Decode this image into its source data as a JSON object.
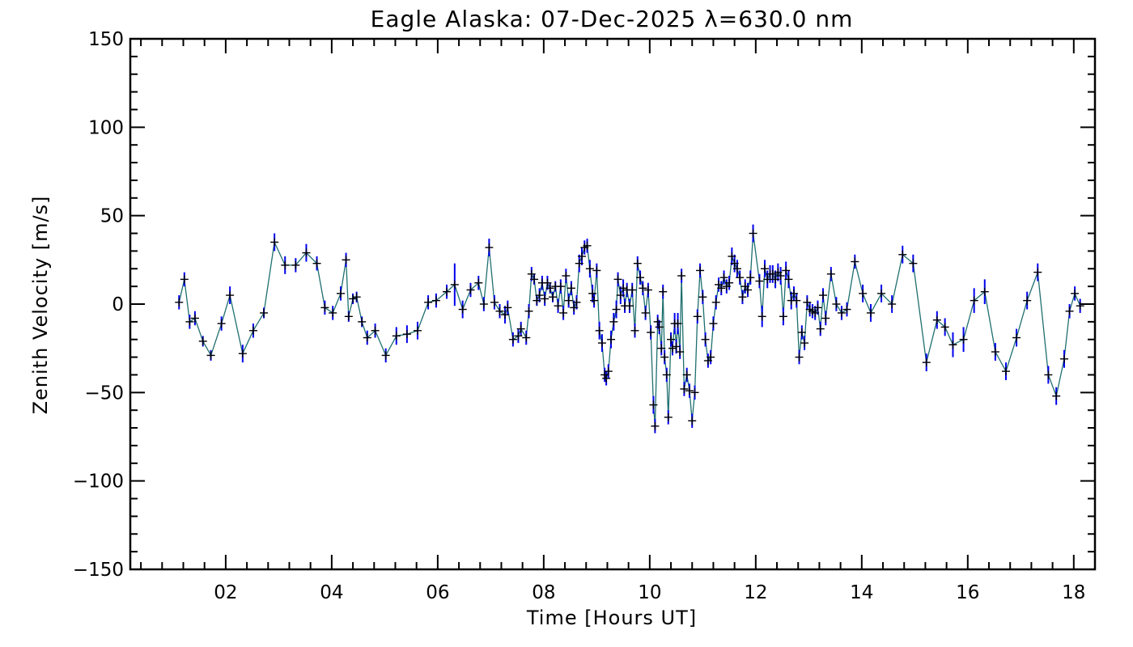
{
  "chart_data": {
    "type": "line",
    "title": "Eagle Alaska: 07-Dec-2025 λ=630.0 nm",
    "xlabel": "Time [Hours UT]",
    "ylabel": "Zenith Velocity [m/s]",
    "xlim": [
      0.2,
      18.4
    ],
    "ylim": [
      -150,
      150
    ],
    "xticks": [
      2,
      4,
      6,
      8,
      10,
      12,
      14,
      16,
      18
    ],
    "xtick_labels": [
      "02",
      "04",
      "06",
      "08",
      "10",
      "12",
      "14",
      "16",
      "18"
    ],
    "yticks": [
      -150,
      -100,
      -50,
      0,
      50,
      100,
      150
    ],
    "ytick_labels": [
      "−150",
      "−100",
      "−50",
      "0",
      "50",
      "100",
      "150"
    ],
    "x_minor_per_major": 5,
    "y_minor_per_major": 5,
    "grid": false,
    "legend": "none",
    "colors": {
      "line": "#1f6f6f",
      "error_bar": "#0000ee",
      "marker": "#000000",
      "axes": "#000000"
    },
    "series": [
      {
        "points": [
          [
            1.12,
            1,
            4
          ],
          [
            1.22,
            14,
            4
          ],
          [
            1.32,
            -10,
            4
          ],
          [
            1.42,
            -8,
            4
          ],
          [
            1.57,
            -21,
            3
          ],
          [
            1.72,
            -29,
            3
          ],
          [
            1.92,
            -11,
            4
          ],
          [
            2.08,
            5,
            5
          ],
          [
            2.32,
            -28,
            5
          ],
          [
            2.52,
            -15,
            4
          ],
          [
            2.72,
            -5,
            3
          ],
          [
            2.92,
            35,
            5
          ],
          [
            3.12,
            22,
            5
          ],
          [
            3.32,
            22,
            4
          ],
          [
            3.52,
            29,
            5
          ],
          [
            3.72,
            23,
            4
          ],
          [
            3.87,
            -2,
            4
          ],
          [
            4.02,
            -5,
            4
          ],
          [
            4.17,
            6,
            4
          ],
          [
            4.27,
            25,
            4
          ],
          [
            4.32,
            -7,
            3
          ],
          [
            4.4,
            3,
            3
          ],
          [
            4.47,
            4,
            3
          ],
          [
            4.57,
            -10,
            3
          ],
          [
            4.67,
            -19,
            4
          ],
          [
            4.82,
            -15,
            4
          ],
          [
            5.02,
            -29,
            4
          ],
          [
            5.22,
            -18,
            5
          ],
          [
            5.42,
            -17,
            5
          ],
          [
            5.62,
            -15,
            5
          ],
          [
            5.82,
            1,
            4
          ],
          [
            5.97,
            2,
            4
          ],
          [
            6.17,
            7,
            4
          ],
          [
            6.32,
            11,
            12
          ],
          [
            6.47,
            -3,
            5
          ],
          [
            6.62,
            8,
            4
          ],
          [
            6.77,
            12,
            4
          ],
          [
            6.87,
            0,
            4
          ],
          [
            6.97,
            32,
            5
          ],
          [
            7.07,
            1,
            4
          ],
          [
            7.17,
            -4,
            4
          ],
          [
            7.27,
            -6,
            5
          ],
          [
            7.32,
            -2,
            4
          ],
          [
            7.42,
            -20,
            4
          ],
          [
            7.52,
            -18,
            4
          ],
          [
            7.57,
            -14,
            4
          ],
          [
            7.67,
            -19,
            4
          ],
          [
            7.72,
            -4,
            4
          ],
          [
            7.77,
            17,
            4
          ],
          [
            7.82,
            14,
            3
          ],
          [
            7.87,
            2,
            3
          ],
          [
            7.92,
            5,
            4
          ],
          [
            7.97,
            12,
            4
          ],
          [
            8.02,
            3,
            4
          ],
          [
            8.07,
            12,
            4
          ],
          [
            8.12,
            9,
            3
          ],
          [
            8.17,
            4,
            3
          ],
          [
            8.22,
            10,
            3
          ],
          [
            8.27,
            -1,
            4
          ],
          [
            8.32,
            10,
            4
          ],
          [
            8.37,
            -5,
            4
          ],
          [
            8.42,
            16,
            4
          ],
          [
            8.47,
            2,
            4
          ],
          [
            8.52,
            9,
            4
          ],
          [
            8.57,
            -2,
            4
          ],
          [
            8.62,
            1,
            4
          ],
          [
            8.67,
            23,
            5
          ],
          [
            8.72,
            27,
            5
          ],
          [
            8.77,
            32,
            4
          ],
          [
            8.82,
            33,
            4
          ],
          [
            8.87,
            20,
            5
          ],
          [
            8.92,
            6,
            5
          ],
          [
            8.95,
            2,
            4
          ],
          [
            9.0,
            19,
            4
          ],
          [
            9.05,
            -15,
            5
          ],
          [
            9.1,
            -22,
            5
          ],
          [
            9.15,
            -40,
            4
          ],
          [
            9.18,
            -42,
            4
          ],
          [
            9.22,
            -38,
            4
          ],
          [
            9.27,
            -20,
            5
          ],
          [
            9.32,
            -10,
            5
          ],
          [
            9.37,
            -3,
            5
          ],
          [
            9.4,
            14,
            4
          ],
          [
            9.45,
            5,
            5
          ],
          [
            9.5,
            9,
            5
          ],
          [
            9.53,
            -1,
            4
          ],
          [
            9.57,
            8,
            4
          ],
          [
            9.62,
            -1,
            4
          ],
          [
            9.67,
            8,
            4
          ],
          [
            9.72,
            -15,
            4
          ],
          [
            9.77,
            23,
            4
          ],
          [
            9.82,
            15,
            4
          ],
          [
            9.87,
            9,
            4
          ],
          [
            9.92,
            -5,
            4
          ],
          [
            9.97,
            8,
            4
          ],
          [
            10.02,
            -16,
            4
          ],
          [
            10.07,
            -57,
            5
          ],
          [
            10.1,
            -69,
            4
          ],
          [
            10.15,
            -10,
            4
          ],
          [
            10.18,
            -13,
            4
          ],
          [
            10.22,
            -25,
            4
          ],
          [
            10.25,
            7,
            4
          ],
          [
            10.28,
            -30,
            4
          ],
          [
            10.32,
            -40,
            4
          ],
          [
            10.35,
            -64,
            4
          ],
          [
            10.4,
            -20,
            4
          ],
          [
            10.43,
            -25,
            4
          ],
          [
            10.47,
            -11,
            6
          ],
          [
            10.5,
            -24,
            4
          ],
          [
            10.53,
            -11,
            6
          ],
          [
            10.57,
            -27,
            4
          ],
          [
            10.6,
            16,
            4
          ],
          [
            10.65,
            -48,
            4
          ],
          [
            10.7,
            -40,
            4
          ],
          [
            10.75,
            -49,
            4
          ],
          [
            10.8,
            -66,
            4
          ],
          [
            10.85,
            -50,
            4
          ],
          [
            10.9,
            -7,
            4
          ],
          [
            10.95,
            19,
            4
          ],
          [
            11.0,
            4,
            4
          ],
          [
            11.05,
            -20,
            4
          ],
          [
            11.1,
            -32,
            4
          ],
          [
            11.15,
            -30,
            4
          ],
          [
            11.2,
            -11,
            4
          ],
          [
            11.25,
            1,
            4
          ],
          [
            11.3,
            11,
            4
          ],
          [
            11.35,
            9,
            4
          ],
          [
            11.4,
            15,
            4
          ],
          [
            11.45,
            10,
            4
          ],
          [
            11.5,
            12,
            4
          ],
          [
            11.55,
            27,
            5
          ],
          [
            11.6,
            23,
            5
          ],
          [
            11.65,
            20,
            5
          ],
          [
            11.7,
            15,
            4
          ],
          [
            11.75,
            4,
            4
          ],
          [
            11.8,
            10,
            4
          ],
          [
            11.85,
            8,
            4
          ],
          [
            11.9,
            15,
            4
          ],
          [
            11.95,
            40,
            5
          ],
          [
            12.07,
            13,
            4
          ],
          [
            12.12,
            -7,
            6
          ],
          [
            12.17,
            20,
            5
          ],
          [
            12.22,
            14,
            5
          ],
          [
            12.27,
            17,
            5
          ],
          [
            12.32,
            17,
            5
          ],
          [
            12.37,
            14,
            5
          ],
          [
            12.42,
            18,
            5
          ],
          [
            12.47,
            16,
            5
          ],
          [
            12.52,
            -7,
            5
          ],
          [
            12.57,
            19,
            5
          ],
          [
            12.62,
            14,
            5
          ],
          [
            12.67,
            2,
            5
          ],
          [
            12.72,
            6,
            4
          ],
          [
            12.77,
            2,
            4
          ],
          [
            12.82,
            -30,
            4
          ],
          [
            12.87,
            -16,
            4
          ],
          [
            12.92,
            -22,
            4
          ],
          [
            12.97,
            1,
            4
          ],
          [
            13.02,
            -3,
            4
          ],
          [
            13.07,
            -4,
            4
          ],
          [
            13.12,
            -5,
            4
          ],
          [
            13.17,
            -2,
            4
          ],
          [
            13.22,
            -14,
            4
          ],
          [
            13.27,
            5,
            4
          ],
          [
            13.32,
            -8,
            4
          ],
          [
            13.42,
            17,
            4
          ],
          [
            13.52,
            0,
            4
          ],
          [
            13.62,
            -5,
            4
          ],
          [
            13.72,
            -3,
            4
          ],
          [
            13.87,
            24,
            4
          ],
          [
            14.02,
            6,
            5
          ],
          [
            14.17,
            -5,
            5
          ],
          [
            14.37,
            6,
            5
          ],
          [
            14.57,
            0,
            5
          ],
          [
            14.77,
            28,
            5
          ],
          [
            14.97,
            23,
            5
          ],
          [
            15.22,
            -33,
            5
          ],
          [
            15.42,
            -9,
            5
          ],
          [
            15.57,
            -13,
            5
          ],
          [
            15.72,
            -23,
            7
          ],
          [
            15.92,
            -20,
            7
          ],
          [
            16.12,
            2,
            7
          ],
          [
            16.32,
            7,
            7
          ],
          [
            16.52,
            -27,
            5
          ],
          [
            16.72,
            -38,
            5
          ],
          [
            16.92,
            -19,
            5
          ],
          [
            17.12,
            2,
            5
          ],
          [
            17.32,
            18,
            5
          ],
          [
            17.52,
            -40,
            5
          ],
          [
            17.67,
            -52,
            5
          ],
          [
            17.82,
            -31,
            5
          ],
          [
            17.92,
            -4,
            4
          ],
          [
            18.02,
            6,
            4
          ],
          [
            18.12,
            -1,
            4
          ]
        ]
      }
    ]
  }
}
